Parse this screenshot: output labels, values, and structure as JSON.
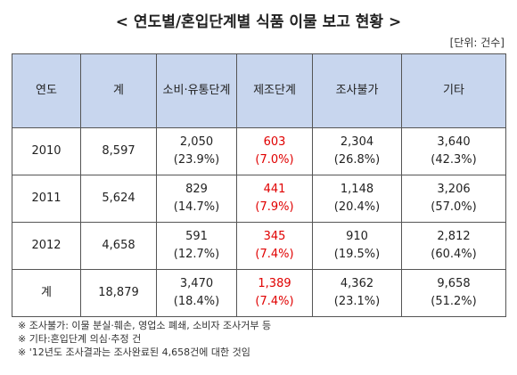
{
  "header": {
    "title": "< 연도별/혼입단계별 식품 이물 보고 현황 >",
    "unit": "[단위: 건수]"
  },
  "table": {
    "columns": [
      "연도",
      "계",
      "소비·유통단계",
      "제조단계",
      "조사불가",
      "기타"
    ],
    "rows": [
      {
        "year": "2010",
        "total": "8,597",
        "cells": [
          {
            "count": "2,050",
            "pct": "(23.9%)"
          },
          {
            "count": "603",
            "pct": "(7.0%)"
          },
          {
            "count": "2,304",
            "pct": "(26.8%)"
          },
          {
            "count": "3,640",
            "pct": "(42.3%)"
          }
        ]
      },
      {
        "year": "2011",
        "total": "5,624",
        "cells": [
          {
            "count": "829",
            "pct": "(14.7%)"
          },
          {
            "count": "441",
            "pct": "(7.9%)"
          },
          {
            "count": "1,148",
            "pct": "(20.4%)"
          },
          {
            "count": "3,206",
            "pct": "(57.0%)"
          }
        ]
      },
      {
        "year": "2012",
        "total": "4,658",
        "cells": [
          {
            "count": "591",
            "pct": "(12.7%)"
          },
          {
            "count": "345",
            "pct": "(7.4%)"
          },
          {
            "count": "910",
            "pct": "(19.5%)"
          },
          {
            "count": "2,812",
            "pct": "(60.4%)"
          }
        ]
      },
      {
        "year": "계",
        "total": "18,879",
        "cells": [
          {
            "count": "3,470",
            "pct": "(18.4%)"
          },
          {
            "count": "1,389",
            "pct": "(7.4%)"
          },
          {
            "count": "4,362",
            "pct": "(23.1%)"
          },
          {
            "count": "9,658",
            "pct": "(51.2%)"
          }
        ]
      }
    ]
  },
  "notes": [
    "※ 조사불가: 이물 분실·훼손, 영업소 폐쇄, 소비자 조사거부 등",
    "※ 기타:혼입단계 의심·추정 건",
    "※ '12년도 조사결과는 조사완료된 4,658건에 대한 것임"
  ]
}
